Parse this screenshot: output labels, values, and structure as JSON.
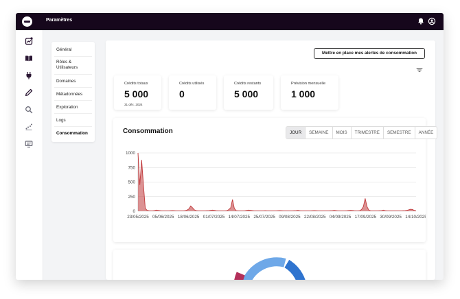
{
  "app": {
    "title": "Paramètres"
  },
  "header": {
    "icons": [
      "bell-icon",
      "account-icon"
    ]
  },
  "sidebar": {
    "icons": [
      "chart-icon",
      "book-icon",
      "plug-icon",
      "pen-icon",
      "search-icon",
      "scatter-icon",
      "monitor-icon"
    ]
  },
  "subnav": {
    "items": [
      {
        "label": "Général"
      },
      {
        "label": "Rôles &"
      },
      {
        "label": "Utilisateurs"
      },
      {
        "label": "Domaines"
      },
      {
        "label": "Métadonnées"
      },
      {
        "label": "Exploration"
      },
      {
        "label": "Logs"
      },
      {
        "label": "Consommation"
      }
    ]
  },
  "alert_button": {
    "label": "Mettre en place mes alertes de consommation"
  },
  "stats": [
    {
      "label": "Crédits totaux",
      "value": "5 000",
      "sub": "31 déc. 2024"
    },
    {
      "label": "Crédits utilisés",
      "value": "0"
    },
    {
      "label": "Crédits restants",
      "value": "5 000"
    },
    {
      "label": "Prévision mensuelle",
      "value": "1 000"
    }
  ],
  "consumption": {
    "title": "Consommation",
    "periods": [
      "JOUR",
      "SEMAINE",
      "MOIS",
      "TRIMESTRE",
      "SEMESTRE",
      "ANNÉE"
    ],
    "active_period": "JOUR"
  },
  "chart_data": {
    "type": "area",
    "title": "",
    "xlabel": "",
    "ylabel": "",
    "ylim": [
      0,
      1000
    ],
    "y_ticks": [
      "0",
      "250",
      "500",
      "750",
      "1000"
    ],
    "x_ticks": [
      "23/05/2025",
      "05/06/2025",
      "18/06/2025",
      "01/07/2025",
      "14/07/2025",
      "25/07/2025",
      "09/08/2025",
      "22/08/2025",
      "04/09/2025",
      "17/09/2025",
      "30/09/2025",
      "14/10/2025"
    ],
    "grid": true,
    "color": "#c0393b",
    "series": [
      {
        "values": [
          1000,
          450,
          880,
          450,
          50,
          15,
          8,
          5,
          5,
          10,
          20,
          15,
          10,
          5,
          5,
          5,
          5,
          5,
          8,
          10,
          8,
          5,
          5,
          5,
          5,
          5,
          10,
          20,
          40,
          90,
          60,
          25,
          10,
          5,
          5,
          5,
          5,
          5,
          8,
          10,
          15,
          20,
          15,
          8,
          5,
          5,
          5,
          5,
          5,
          10,
          30,
          60,
          200,
          50,
          10,
          5,
          5,
          5,
          5,
          8,
          15,
          20,
          15,
          10,
          5,
          5,
          5,
          5,
          5,
          5,
          8,
          5,
          5,
          5,
          5,
          5,
          5,
          8,
          10,
          8,
          5,
          5,
          5,
          5,
          5,
          5,
          8,
          10,
          15,
          8,
          5,
          5,
          5,
          5,
          5,
          5,
          8,
          10,
          8,
          5,
          5,
          5,
          5,
          5,
          5,
          5,
          8,
          10,
          15,
          10,
          5,
          5,
          5,
          5,
          5,
          8,
          12,
          15,
          12,
          8,
          5,
          5,
          10,
          30,
          80,
          220,
          80,
          20,
          5,
          5,
          5,
          5,
          5,
          8,
          10,
          20,
          10,
          5,
          5,
          5,
          5,
          5,
          5,
          5,
          5,
          5,
          8,
          10,
          15,
          25,
          35,
          30,
          15,
          5
        ]
      }
    ]
  }
}
